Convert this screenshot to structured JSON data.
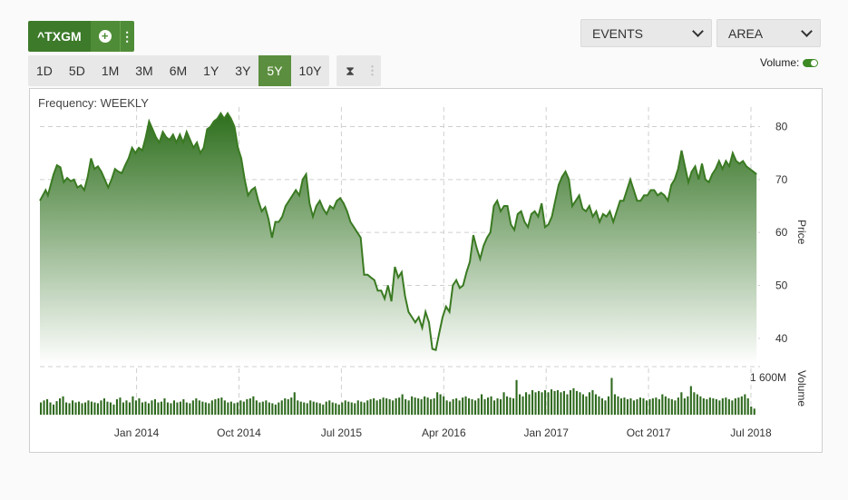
{
  "toolbar": {
    "symbol": "^TXGM",
    "add_icon": "plus-circle-icon",
    "more_icon": "vertical-dots-icon",
    "ranges": [
      "1D",
      "5D",
      "1M",
      "3M",
      "6M",
      "1Y",
      "3Y",
      "5Y",
      "10Y"
    ],
    "active_range": "5Y",
    "tools_icon": "hourglass-icon",
    "events_label": "EVENTS",
    "chart_type_label": "AREA",
    "volume_label": "Volume:",
    "volume_on": true
  },
  "frequency_label": "Frequency: WEEKLY",
  "colors": {
    "accent": "#3d7a2a",
    "line": "#3a7a22",
    "fill_top": "#2e6f1d",
    "volume_bar": "#2f6a1f"
  },
  "chart_data": {
    "type": "area",
    "title": "",
    "xlabel": "",
    "ylabel": "Price",
    "y2label": "Volume",
    "ylim": [
      35,
      83
    ],
    "y_ticks": [
      40,
      50,
      60,
      70,
      80
    ],
    "y2_tick_label": "1 600M",
    "x_tick_labels": [
      "Jan 2014",
      "Oct 2014",
      "Jul 2015",
      "Apr 2016",
      "Jan 2017",
      "Oct 2017",
      "Jul 2018"
    ],
    "x_tick_positions": [
      1,
      10,
      19,
      28,
      37,
      46,
      55
    ],
    "x_range": [
      -7.5,
      55.8
    ],
    "grid": true,
    "series": [
      {
        "values": [
          [
            -7.5,
            66
          ],
          [
            -7,
            68
          ],
          [
            -6.8,
            67
          ],
          [
            -6.3,
            71
          ],
          [
            -6,
            72.7
          ],
          [
            -5.7,
            72.3
          ],
          [
            -5.4,
            69.5
          ],
          [
            -5.1,
            70.3
          ],
          [
            -4.8,
            69.7
          ],
          [
            -4.5,
            70
          ],
          [
            -4.2,
            68.5
          ],
          [
            -3.9,
            68.9
          ],
          [
            -3.6,
            68
          ],
          [
            -3.3,
            70.5
          ],
          [
            -3,
            74
          ],
          [
            -2.7,
            72
          ],
          [
            -2.4,
            72.5
          ],
          [
            -2.1,
            71.5
          ],
          [
            -1.8,
            70
          ],
          [
            -1.5,
            68.5
          ],
          [
            -1.2,
            70
          ],
          [
            -0.9,
            72
          ],
          [
            -0.6,
            71.5
          ],
          [
            -0.3,
            71.2
          ],
          [
            0,
            72.7
          ],
          [
            0.3,
            74
          ],
          [
            0.6,
            76
          ],
          [
            0.9,
            75
          ],
          [
            1.2,
            76
          ],
          [
            1.5,
            75.5
          ],
          [
            1.8,
            78
          ],
          [
            2.1,
            81
          ],
          [
            2.4,
            79.5
          ],
          [
            2.7,
            78
          ],
          [
            3,
            77
          ],
          [
            3.3,
            79
          ],
          [
            3.6,
            78
          ],
          [
            3.9,
            77.5
          ],
          [
            4.2,
            78.5
          ],
          [
            4.5,
            77
          ],
          [
            4.8,
            78.5
          ],
          [
            5.1,
            77
          ],
          [
            5.4,
            79
          ],
          [
            5.7,
            77.5
          ],
          [
            6,
            76
          ],
          [
            6.3,
            77
          ],
          [
            6.6,
            75
          ],
          [
            6.9,
            76
          ],
          [
            7.2,
            79.5
          ],
          [
            7.5,
            80
          ],
          [
            7.8,
            81
          ],
          [
            8.1,
            81.5
          ],
          [
            8.4,
            82.5
          ],
          [
            8.7,
            81.5
          ],
          [
            9,
            82.5
          ],
          [
            9.3,
            81.5
          ],
          [
            9.6,
            80
          ],
          [
            9.9,
            76
          ],
          [
            10.2,
            74
          ],
          [
            10.5,
            70
          ],
          [
            10.8,
            67
          ],
          [
            11.1,
            68
          ],
          [
            11.4,
            68.5
          ],
          [
            11.7,
            66
          ],
          [
            12,
            64
          ],
          [
            12.3,
            64.8
          ],
          [
            12.6,
            62.5
          ],
          [
            12.9,
            59
          ],
          [
            13.2,
            62
          ],
          [
            13.5,
            62
          ],
          [
            13.8,
            63
          ],
          [
            14.1,
            65
          ],
          [
            14.4,
            66
          ],
          [
            14.7,
            67
          ],
          [
            15,
            68
          ],
          [
            15.3,
            67
          ],
          [
            15.6,
            70
          ],
          [
            15.9,
            71
          ],
          [
            16.2,
            65.5
          ],
          [
            16.5,
            63
          ],
          [
            16.8,
            65
          ],
          [
            17.1,
            66
          ],
          [
            17.4,
            64.5
          ],
          [
            17.7,
            63.5
          ],
          [
            18,
            65
          ],
          [
            18.3,
            64.5
          ],
          [
            18.6,
            66
          ],
          [
            18.9,
            66.5
          ],
          [
            19.2,
            65.5
          ],
          [
            19.5,
            64
          ],
          [
            19.8,
            62
          ],
          [
            20.1,
            61
          ],
          [
            20.4,
            60
          ],
          [
            20.7,
            59
          ],
          [
            21,
            52
          ],
          [
            21.3,
            52
          ],
          [
            21.6,
            51.5
          ],
          [
            21.9,
            51
          ],
          [
            22.2,
            49
          ],
          [
            22.5,
            49
          ],
          [
            22.8,
            47.5
          ],
          [
            23.1,
            50
          ],
          [
            23.4,
            47
          ],
          [
            23.7,
            53.5
          ],
          [
            24,
            51.5
          ],
          [
            24.3,
            52.5
          ],
          [
            24.6,
            48
          ],
          [
            24.9,
            45
          ],
          [
            25.2,
            44
          ],
          [
            25.5,
            43
          ],
          [
            25.8,
            44
          ],
          [
            26.1,
            42
          ],
          [
            26.4,
            45
          ],
          [
            26.7,
            43
          ],
          [
            27,
            38
          ],
          [
            27.3,
            37.8
          ],
          [
            27.6,
            41
          ],
          [
            27.9,
            44
          ],
          [
            28.2,
            46
          ],
          [
            28.5,
            45
          ],
          [
            28.8,
            50
          ],
          [
            29.1,
            51
          ],
          [
            29.4,
            49.5
          ],
          [
            29.7,
            50
          ],
          [
            30,
            52.5
          ],
          [
            30.3,
            54.5
          ],
          [
            30.6,
            59.5
          ],
          [
            30.9,
            57
          ],
          [
            31.2,
            55
          ],
          [
            31.5,
            57.5
          ],
          [
            31.8,
            59
          ],
          [
            32.1,
            60
          ],
          [
            32.4,
            65
          ],
          [
            32.7,
            66
          ],
          [
            33,
            64
          ],
          [
            33.3,
            65
          ],
          [
            33.6,
            65
          ],
          [
            33.9,
            61.5
          ],
          [
            34.2,
            60.5
          ],
          [
            34.5,
            63.5
          ],
          [
            34.8,
            64
          ],
          [
            35.1,
            62
          ],
          [
            35.4,
            61
          ],
          [
            35.7,
            63.5
          ],
          [
            36,
            64
          ],
          [
            36.3,
            63
          ],
          [
            36.6,
            65.5
          ],
          [
            36.9,
            61
          ],
          [
            37.2,
            61.5
          ],
          [
            37.5,
            63
          ],
          [
            37.8,
            66
          ],
          [
            38.1,
            69
          ],
          [
            38.4,
            70.5
          ],
          [
            38.7,
            71.5
          ],
          [
            39,
            70
          ],
          [
            39.3,
            65
          ],
          [
            39.6,
            66
          ],
          [
            39.9,
            67
          ],
          [
            40.2,
            64.5
          ],
          [
            40.5,
            64
          ],
          [
            40.8,
            65
          ],
          [
            41.1,
            63
          ],
          [
            41.4,
            64
          ],
          [
            41.7,
            62
          ],
          [
            42,
            63.5
          ],
          [
            42.3,
            63
          ],
          [
            42.6,
            64
          ],
          [
            42.9,
            62
          ],
          [
            43.2,
            64
          ],
          [
            43.5,
            66
          ],
          [
            43.8,
            66
          ],
          [
            44.1,
            68
          ],
          [
            44.4,
            70
          ],
          [
            44.7,
            68
          ],
          [
            45,
            66
          ],
          [
            45.3,
            66
          ],
          [
            45.6,
            67
          ],
          [
            45.9,
            67
          ],
          [
            46.2,
            68
          ],
          [
            46.5,
            68
          ],
          [
            46.8,
            67
          ],
          [
            47.1,
            67.5
          ],
          [
            47.4,
            67
          ],
          [
            47.7,
            66
          ],
          [
            48,
            69
          ],
          [
            48.3,
            70
          ],
          [
            48.6,
            72
          ],
          [
            48.9,
            75.5
          ],
          [
            49.2,
            72.5
          ],
          [
            49.5,
            69.5
          ],
          [
            49.8,
            71.5
          ],
          [
            50.1,
            72.5
          ],
          [
            50.4,
            70
          ],
          [
            50.7,
            73
          ],
          [
            51,
            70
          ],
          [
            51.3,
            69.5
          ],
          [
            51.6,
            71
          ],
          [
            51.9,
            72
          ],
          [
            52.2,
            73.5
          ],
          [
            52.5,
            72
          ],
          [
            52.8,
            73.5
          ],
          [
            53.1,
            72.5
          ],
          [
            53.4,
            75
          ],
          [
            53.7,
            73.5
          ],
          [
            54,
            73
          ],
          [
            54.3,
            73.5
          ],
          [
            54.6,
            72.5
          ],
          [
            54.9,
            72
          ],
          [
            55.2,
            71.5
          ],
          [
            55.5,
            71
          ]
        ]
      }
    ],
    "volume": [
      0.3,
      0.35,
      0.38,
      0.3,
      0.25,
      0.33,
      0.4,
      0.45,
      0.3,
      0.28,
      0.35,
      0.3,
      0.32,
      0.28,
      0.3,
      0.35,
      0.32,
      0.3,
      0.28,
      0.35,
      0.4,
      0.32,
      0.3,
      0.25,
      0.38,
      0.42,
      0.3,
      0.35,
      0.3,
      0.45,
      0.35,
      0.4,
      0.3,
      0.32,
      0.28,
      0.35,
      0.38,
      0.3,
      0.32,
      0.4,
      0.3,
      0.28,
      0.35,
      0.3,
      0.32,
      0.38,
      0.3,
      0.28,
      0.35,
      0.4,
      0.35,
      0.32,
      0.3,
      0.28,
      0.35,
      0.38,
      0.4,
      0.42,
      0.35,
      0.3,
      0.32,
      0.28,
      0.3,
      0.35,
      0.32,
      0.38,
      0.4,
      0.45,
      0.35,
      0.3,
      0.32,
      0.35,
      0.3,
      0.28,
      0.25,
      0.3,
      0.35,
      0.4,
      0.38,
      0.42,
      0.55,
      0.35,
      0.32,
      0.3,
      0.28,
      0.35,
      0.32,
      0.3,
      0.28,
      0.25,
      0.32,
      0.35,
      0.3,
      0.28,
      0.25,
      0.3,
      0.35,
      0.32,
      0.3,
      0.28,
      0.35,
      0.32,
      0.3,
      0.35,
      0.38,
      0.4,
      0.35,
      0.38,
      0.42,
      0.4,
      0.38,
      0.35,
      0.4,
      0.42,
      0.5,
      0.38,
      0.35,
      0.45,
      0.42,
      0.4,
      0.38,
      0.45,
      0.42,
      0.38,
      0.4,
      0.55,
      0.5,
      0.45,
      0.35,
      0.32,
      0.38,
      0.4,
      0.35,
      0.42,
      0.45,
      0.4,
      0.38,
      0.35,
      0.4,
      0.5,
      0.38,
      0.42,
      0.45,
      0.35,
      0.4,
      0.38,
      0.55,
      0.45,
      0.42,
      0.4,
      0.85,
      0.5,
      0.45,
      0.55,
      0.5,
      0.6,
      0.55,
      0.58,
      0.55,
      0.6,
      0.55,
      0.62,
      0.58,
      0.6,
      0.55,
      0.58,
      0.5,
      0.6,
      0.65,
      0.58,
      0.55,
      0.5,
      0.45,
      0.55,
      0.6,
      0.5,
      0.45,
      0.4,
      0.35,
      0.45,
      0.9,
      0.5,
      0.45,
      0.4,
      0.42,
      0.38,
      0.4,
      0.35,
      0.38,
      0.42,
      0.4,
      0.35,
      0.38,
      0.4,
      0.42,
      0.38,
      0.5,
      0.45,
      0.4,
      0.38,
      0.35,
      0.42,
      0.55,
      0.4,
      0.45,
      0.7,
      0.55,
      0.5,
      0.45,
      0.4,
      0.38,
      0.42,
      0.4,
      0.38,
      0.35,
      0.4,
      0.42,
      0.38,
      0.35,
      0.4,
      0.42,
      0.45,
      0.5,
      0.4,
      0.2,
      0.15
    ]
  }
}
